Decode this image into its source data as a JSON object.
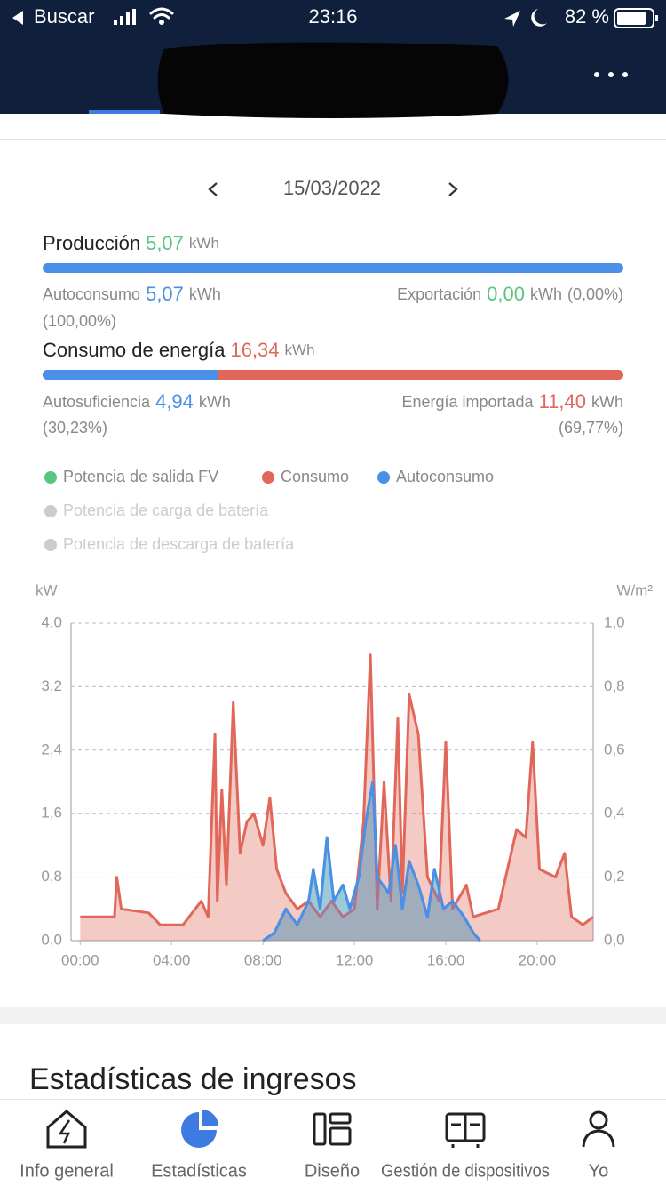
{
  "status_bar": {
    "back": "Buscar",
    "time": "23:16",
    "battery": "82 %"
  },
  "date": "15/03/2022",
  "production": {
    "label": "Producción",
    "value": "5,07",
    "unit": "kWh"
  },
  "self_consumption": {
    "label": "Autoconsumo",
    "value": "5,07",
    "unit": "kWh",
    "percent": "(100,00%)"
  },
  "export": {
    "label": "Exportación",
    "value": "0,00",
    "unit": "kWh",
    "percent": "(0,00%)"
  },
  "consumption": {
    "label": "Consumo de energía",
    "value": "16,34",
    "unit": "kWh"
  },
  "self_sufficiency": {
    "label": "Autosuficiencia",
    "value": "4,94",
    "unit": "kWh",
    "percent": "(30,23%)"
  },
  "imported": {
    "label": "Energía importada",
    "value": "11,40",
    "unit": "kWh",
    "percent": "(69,77%)"
  },
  "chart_data": {
    "type": "area",
    "y_label": "kW",
    "y2_label": "W/m²",
    "xlim": [
      -0.4,
      22.45
    ],
    "xticks": [
      {
        "value": 0,
        "label": "00:00"
      },
      {
        "value": 4,
        "label": "04:00"
      },
      {
        "value": 8,
        "label": "08:00"
      },
      {
        "value": 12,
        "label": "12:00"
      },
      {
        "value": 16,
        "label": "16:00"
      },
      {
        "value": 20,
        "label": "20:00"
      }
    ],
    "ylim": [
      0,
      4
    ],
    "yticks": [
      {
        "value": 0,
        "label": "0,0"
      },
      {
        "value": 0.8,
        "label": "0,8"
      },
      {
        "value": 1.6,
        "label": "1,6"
      },
      {
        "value": 2.4,
        "label": "2,4"
      },
      {
        "value": 3.2,
        "label": "3,2"
      },
      {
        "value": 4,
        "label": "4,0"
      }
    ],
    "y2lim": [
      0,
      1
    ],
    "y2ticks": [
      {
        "value": 0,
        "label": "0,0"
      },
      {
        "value": 0.2,
        "label": "0,2"
      },
      {
        "value": 0.4,
        "label": "0,4"
      },
      {
        "value": 0.6,
        "label": "0,6"
      },
      {
        "value": 0.8,
        "label": "0,8"
      },
      {
        "value": 1,
        "label": "1,0"
      }
    ],
    "grid": true,
    "series": [
      {
        "name": "Potencia de salida FV",
        "color": "#5bc57f",
        "x": [
          8,
          8.5,
          9,
          9.5,
          10,
          10.2,
          10.5,
          10.8,
          11.1,
          11.5,
          11.8,
          12.2,
          12.5,
          12.8,
          13,
          13.5,
          13.8,
          14.1,
          14.4,
          14.8,
          15.2,
          15.5,
          15.9,
          16.3,
          16.8,
          17.2,
          17.5
        ],
        "values": [
          0,
          0.1,
          0.4,
          0.2,
          0.5,
          0.9,
          0.4,
          1.3,
          0.5,
          0.7,
          0.4,
          0.8,
          1.5,
          2.0,
          0.8,
          0.6,
          1.2,
          0.4,
          1.0,
          0.7,
          0.3,
          0.9,
          0.4,
          0.5,
          0.3,
          0.1,
          0
        ]
      },
      {
        "name": "Consumo",
        "color": "#e0675a",
        "x": [
          0,
          1.5,
          1.6,
          1.8,
          3,
          3.5,
          4.5,
          5.3,
          5.6,
          5.9,
          6,
          6.2,
          6.4,
          6.7,
          7,
          7.3,
          7.6,
          8,
          8.3,
          8.6,
          9,
          9.5,
          10,
          10.5,
          11,
          11.5,
          12,
          12.4,
          12.7,
          13,
          13.3,
          13.6,
          13.9,
          14.1,
          14.4,
          14.8,
          15.2,
          15.7,
          16,
          16.3,
          16.9,
          17.2,
          18.3,
          19.1,
          19.5,
          19.8,
          20.1,
          20.8,
          21.2,
          21.5,
          22,
          22.45
        ],
        "values": [
          0.3,
          0.3,
          0.8,
          0.4,
          0.35,
          0.2,
          0.2,
          0.5,
          0.3,
          2.6,
          0.5,
          1.9,
          0.7,
          3.0,
          1.1,
          1.5,
          1.6,
          1.2,
          1.8,
          0.9,
          0.6,
          0.4,
          0.5,
          0.3,
          0.5,
          0.3,
          0.4,
          1.5,
          3.6,
          0.4,
          2.0,
          0.5,
          2.8,
          0.6,
          3.1,
          2.6,
          0.8,
          0.5,
          2.5,
          0.4,
          0.7,
          0.3,
          0.4,
          1.4,
          1.3,
          2.5,
          0.9,
          0.8,
          1.1,
          0.3,
          0.2,
          0.3
        ]
      },
      {
        "name": "Autoconsumo",
        "color": "#4a8fe8",
        "x": [
          8,
          8.5,
          9,
          9.5,
          10,
          10.2,
          10.5,
          10.8,
          11.1,
          11.5,
          11.8,
          12.2,
          12.5,
          12.8,
          13,
          13.5,
          13.8,
          14.1,
          14.4,
          14.8,
          15.2,
          15.5,
          15.9,
          16.3,
          16.8,
          17.2,
          17.5
        ],
        "values": [
          0,
          0.1,
          0.4,
          0.2,
          0.5,
          0.9,
          0.4,
          1.3,
          0.5,
          0.7,
          0.4,
          0.8,
          1.5,
          2.0,
          0.8,
          0.6,
          1.2,
          0.4,
          1.0,
          0.7,
          0.3,
          0.9,
          0.4,
          0.5,
          0.3,
          0.1,
          0
        ]
      }
    ],
    "hidden_series": [
      {
        "name": "Potencia de carga de batería",
        "color": "#cccccc"
      },
      {
        "name": "Potencia de descarga de batería",
        "color": "#cccccc"
      }
    ]
  },
  "section_title": "Estadísticas de ingresos",
  "tabs": [
    {
      "label": "Info general",
      "active": false
    },
    {
      "label": "Estadísticas",
      "active": true
    },
    {
      "label": "Diseño",
      "active": false
    },
    {
      "label": "Gestión de dispositivos",
      "active": false
    },
    {
      "label": "Yo",
      "active": false
    }
  ]
}
